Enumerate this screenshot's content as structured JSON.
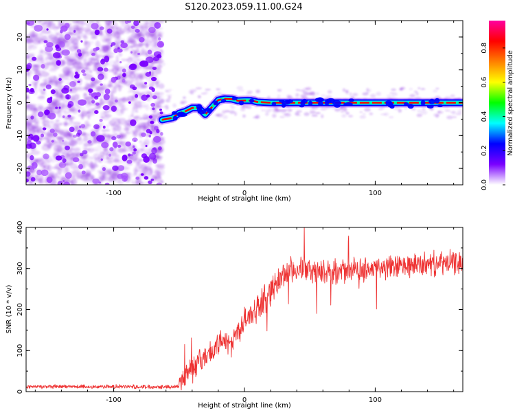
{
  "title": "S120.2023.059.11.00.G24",
  "colorbar": {
    "label": "Normalized spectral amplitude",
    "ticks": [
      "0.0",
      "0.2",
      "0.4",
      "0.6",
      "0.8"
    ],
    "tick_values": [
      0.0,
      0.2,
      0.4,
      0.6,
      0.8
    ],
    "range": [
      0,
      0.96
    ],
    "stops": [
      "#ffffff",
      "#7a00ff",
      "#0000ff",
      "#00ffff",
      "#00ff00",
      "#ffff00",
      "#ff8000",
      "#ff0000",
      "#ff00a0"
    ]
  },
  "chart_data": [
    {
      "type": "heatmap",
      "xlabel": "Height of straight line (km)",
      "ylabel": "Frequency (Hz)",
      "xlim": [
        -167,
        167
      ],
      "ylim": [
        -25,
        25
      ],
      "xticks": [
        -100,
        0,
        100
      ],
      "xtick_labels": [
        "-100",
        "0",
        "100"
      ],
      "yticks": [
        -20,
        -10,
        0,
        10,
        20
      ],
      "ytick_labels": [
        "-20",
        "-10",
        "0",
        "10",
        "20"
      ],
      "noise_region_x": [
        -167,
        -63
      ],
      "ridge": {
        "x": [
          -63,
          -55,
          -50,
          -45,
          -40,
          -35,
          -30,
          -25,
          -20,
          -15,
          -10,
          -5,
          0,
          5,
          10,
          20,
          40,
          60,
          80,
          100,
          120,
          140,
          167
        ],
        "y": [
          -5.2,
          -4.6,
          -3.2,
          -2.6,
          -1.6,
          -1.6,
          -3.6,
          -1.4,
          0.8,
          1.2,
          1.1,
          0.6,
          0.7,
          0.7,
          0.2,
          0.0,
          0.0,
          0.0,
          0.0,
          0.0,
          0.0,
          0.0,
          0.0
        ]
      },
      "colors": {
        "noise": "#8a2be2",
        "ridge_outer": "#0000ff",
        "ridge_mid": "#00e5ff",
        "ridge_core": "#ff0000"
      }
    },
    {
      "type": "line",
      "xlabel": "Height of straight line (km)",
      "ylabel": "SNR (10 * v/v)",
      "xlim": [
        -167,
        167
      ],
      "ylim": [
        0,
        400
      ],
      "xticks": [
        -100,
        0,
        100
      ],
      "xtick_labels": [
        "-100",
        "0",
        "100"
      ],
      "yticks": [
        0,
        100,
        200,
        300,
        400
      ],
      "ytick_labels": [
        "0",
        "100",
        "200",
        "300",
        "400"
      ],
      "trend": {
        "x": [
          -167,
          -50,
          -46,
          -40,
          -30,
          -20,
          -10,
          0,
          10,
          20,
          30,
          40,
          60,
          80,
          100,
          120,
          140,
          167
        ],
        "y": [
          12,
          12,
          40,
          60,
          85,
          110,
          125,
          170,
          205,
          245,
          285,
          300,
          290,
          295,
          300,
          305,
          310,
          315
        ]
      },
      "color": "#ee3333"
    }
  ]
}
